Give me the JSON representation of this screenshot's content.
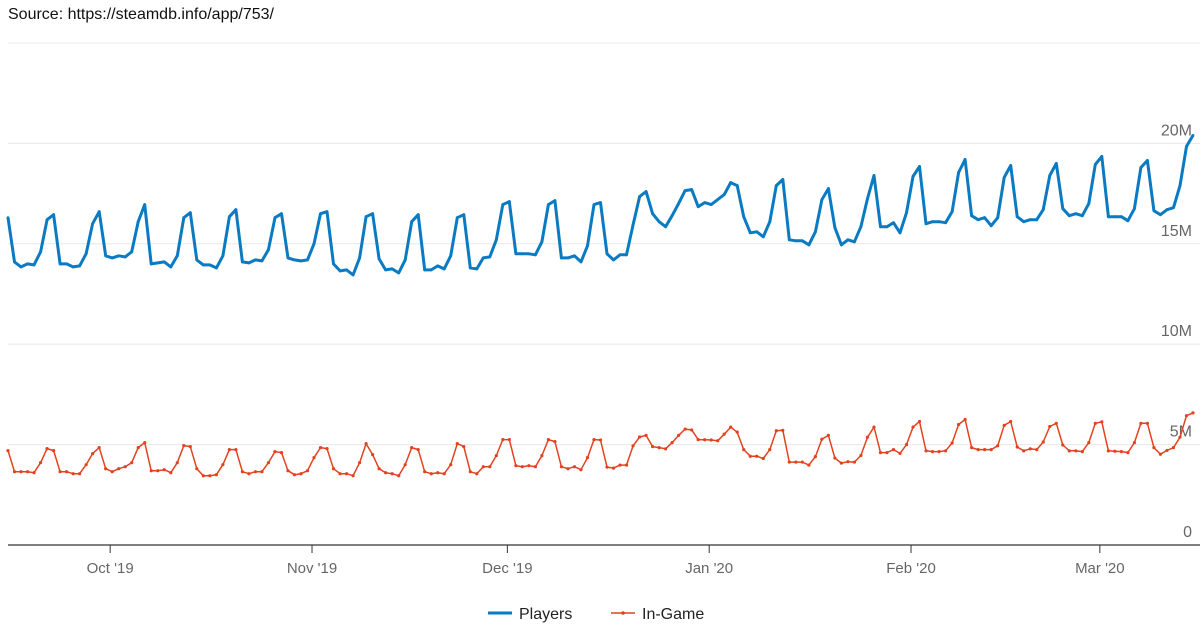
{
  "source": "Source: https://steamdb.info/app/753/",
  "chart_data": {
    "type": "line",
    "title": "",
    "xlabel": "",
    "ylabel": "",
    "x_start_date": "2019-09-15",
    "x_interval": "1 day",
    "x_end_date": "2020-03-15",
    "ylim": [
      0,
      25000000
    ],
    "y_ticks": [
      {
        "value": 0,
        "label": "0"
      },
      {
        "value": 5000000,
        "label": "5M"
      },
      {
        "value": 10000000,
        "label": "10M"
      },
      {
        "value": 15000000,
        "label": "15M"
      },
      {
        "value": 20000000,
        "label": "20M"
      },
      {
        "value": 25000000,
        "label": ""
      }
    ],
    "x_ticks": [
      {
        "day": 16,
        "label": "Oct '19"
      },
      {
        "day": 47,
        "label": "Nov '19"
      },
      {
        "day": 77,
        "label": "Dec '19"
      },
      {
        "day": 108,
        "label": "Jan '20"
      },
      {
        "day": 139,
        "label": "Feb '20"
      },
      {
        "day": 168,
        "label": "Mar '20"
      }
    ],
    "grid": true,
    "legend_position": "bottom-center",
    "value_unit": "millions",
    "series": [
      {
        "name": "Players",
        "color": "#0a7bc2",
        "values": [
          16.3,
          14.1,
          13.85,
          14.0,
          13.95,
          14.6,
          16.2,
          16.45,
          14.0,
          14.0,
          13.85,
          13.9,
          14.5,
          16.0,
          16.6,
          14.4,
          14.3,
          14.4,
          14.35,
          14.6,
          16.1,
          16.95,
          14.0,
          14.05,
          14.1,
          13.85,
          14.4,
          16.3,
          16.55,
          14.2,
          13.95,
          13.95,
          13.8,
          14.4,
          16.35,
          16.7,
          14.1,
          14.05,
          14.2,
          14.15,
          14.7,
          16.3,
          16.5,
          14.3,
          14.2,
          14.15,
          14.2,
          15.0,
          16.5,
          16.6,
          14.0,
          13.65,
          13.7,
          13.45,
          14.3,
          16.35,
          16.5,
          14.25,
          13.7,
          13.75,
          13.55,
          14.2,
          16.1,
          16.45,
          13.7,
          13.7,
          13.9,
          13.75,
          14.4,
          16.3,
          16.45,
          13.8,
          13.75,
          14.3,
          14.35,
          15.2,
          16.95,
          17.1,
          14.5,
          14.5,
          14.5,
          14.45,
          15.1,
          16.95,
          17.15,
          14.3,
          14.3,
          14.4,
          14.1,
          14.9,
          16.95,
          17.05,
          14.5,
          14.2,
          14.45,
          14.45,
          15.95,
          17.35,
          17.6,
          16.5,
          16.1,
          15.85,
          16.4,
          17.0,
          17.65,
          17.7,
          16.85,
          17.05,
          16.95,
          17.2,
          17.45,
          18.05,
          17.9,
          16.35,
          15.55,
          15.6,
          15.35,
          16.1,
          17.9,
          18.2,
          15.2,
          15.15,
          15.15,
          14.95,
          15.6,
          17.2,
          17.75,
          15.8,
          14.95,
          15.2,
          15.1,
          15.85,
          17.25,
          18.4,
          15.85,
          15.85,
          16.05,
          15.55,
          16.55,
          18.35,
          18.85,
          16.0,
          16.1,
          16.1,
          16.05,
          16.6,
          18.55,
          19.2,
          16.4,
          16.2,
          16.3,
          15.9,
          16.3,
          18.3,
          18.9,
          16.35,
          16.1,
          16.2,
          16.2,
          16.7,
          18.4,
          19.0,
          16.75,
          16.4,
          16.5,
          16.4,
          17.0,
          18.95,
          19.35,
          16.35,
          16.35,
          16.35,
          16.15,
          16.75,
          18.8,
          19.15,
          16.65,
          16.45,
          16.7,
          16.8,
          17.9,
          19.85,
          20.4
        ]
      },
      {
        "name": "In-Game",
        "color": "#e2431e",
        "values": [
          4.7,
          3.65,
          3.65,
          3.65,
          3.6,
          4.1,
          4.8,
          4.7,
          3.65,
          3.65,
          3.55,
          3.55,
          4.0,
          4.55,
          4.85,
          3.8,
          3.65,
          3.8,
          3.9,
          4.1,
          4.85,
          5.1,
          3.7,
          3.7,
          3.75,
          3.6,
          4.1,
          4.95,
          4.9,
          3.8,
          3.45,
          3.45,
          3.5,
          4.0,
          4.75,
          4.75,
          3.65,
          3.55,
          3.65,
          3.65,
          4.1,
          4.65,
          4.6,
          3.7,
          3.5,
          3.55,
          3.7,
          4.35,
          4.85,
          4.8,
          3.8,
          3.55,
          3.55,
          3.45,
          4.1,
          5.05,
          4.5,
          3.8,
          3.6,
          3.55,
          3.45,
          4.0,
          4.85,
          4.75,
          3.65,
          3.55,
          3.6,
          3.55,
          4.0,
          5.05,
          4.9,
          3.65,
          3.55,
          3.9,
          3.9,
          4.45,
          5.25,
          5.25,
          3.95,
          3.9,
          3.95,
          3.9,
          4.45,
          5.25,
          5.15,
          3.9,
          3.8,
          3.9,
          3.75,
          4.35,
          5.25,
          5.23,
          3.88,
          3.83,
          3.98,
          3.98,
          4.94,
          5.38,
          5.46,
          4.9,
          4.85,
          4.79,
          5.1,
          5.46,
          5.77,
          5.73,
          5.25,
          5.24,
          5.23,
          5.19,
          5.52,
          5.87,
          5.62,
          4.75,
          4.42,
          4.42,
          4.31,
          4.75,
          5.69,
          5.71,
          4.13,
          4.13,
          4.13,
          3.98,
          4.4,
          5.27,
          5.46,
          4.33,
          4.08,
          4.15,
          4.13,
          4.46,
          5.37,
          5.87,
          4.6,
          4.6,
          4.75,
          4.56,
          5.0,
          5.87,
          6.15,
          4.69,
          4.65,
          4.65,
          4.69,
          5.08,
          6.0,
          6.25,
          4.85,
          4.75,
          4.75,
          4.75,
          4.94,
          5.96,
          6.15,
          4.88,
          4.69,
          4.79,
          4.75,
          5.13,
          5.9,
          6.06,
          4.98,
          4.69,
          4.69,
          4.65,
          5.1,
          6.06,
          6.13,
          4.69,
          4.67,
          4.65,
          4.6,
          5.1,
          6.06,
          6.06,
          4.85,
          4.52,
          4.71,
          4.85,
          5.37,
          6.44,
          6.58
        ]
      }
    ]
  }
}
